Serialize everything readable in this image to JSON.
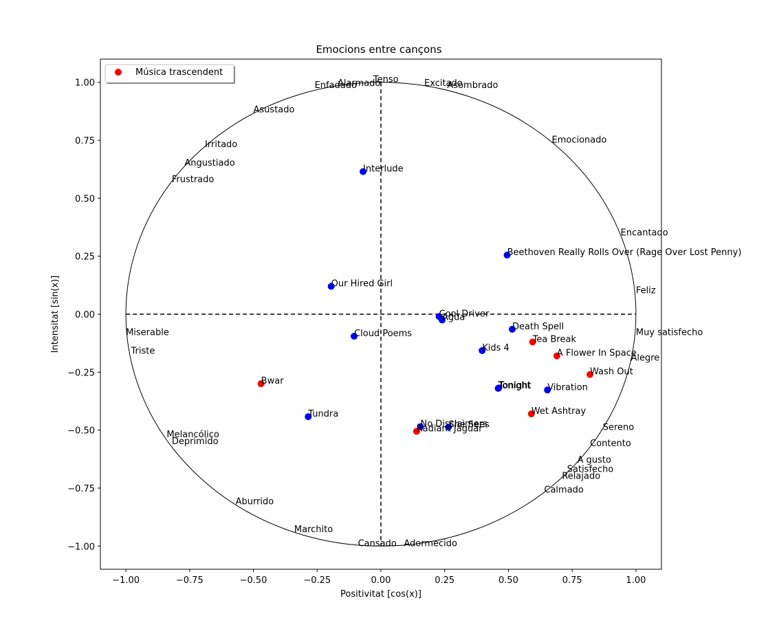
{
  "chart_data": {
    "type": "scatter",
    "title": "Emocions entre cançons",
    "xlabel": "Positivitat [cos(x)]",
    "ylabel": "Intensitat [sin(x)]",
    "xlim": [
      -1.1,
      1.1
    ],
    "ylim": [
      -1.1,
      1.1
    ],
    "xticks": [
      -1.0,
      -0.75,
      -0.5,
      -0.25,
      0.0,
      0.25,
      0.5,
      0.75,
      1.0
    ],
    "yticks": [
      1.0,
      0.75,
      0.5,
      0.25,
      0.0,
      -0.25,
      -0.5,
      -0.75,
      -1.0
    ],
    "xtick_labels": [
      "−1.00",
      "−0.75",
      "−0.50",
      "−0.25",
      "0.00",
      "0.25",
      "0.50",
      "0.75",
      "1.00"
    ],
    "ytick_labels": [
      "1.00",
      "0.75",
      "0.50",
      "0.25",
      "0.00",
      "−0.25",
      "−0.50",
      "−0.75",
      "−1.00"
    ],
    "grid": false,
    "unit_circle": true,
    "dashed_axes": true,
    "legend": {
      "location": "upper left",
      "entries": [
        {
          "label": "Música trascendent",
          "color": "#ff0000"
        }
      ]
    },
    "colors": {
      "blue": "#0000ff",
      "red": "#ff0000"
    },
    "series": [
      {
        "name": "Música trascendent",
        "color": "#ff0000",
        "points": [
          {
            "label": "Tea Break",
            "x": 0.595,
            "y": -0.12
          },
          {
            "label": "A Flower In Space",
            "x": 0.69,
            "y": -0.18
          },
          {
            "label": "Wash Out",
            "x": 0.82,
            "y": -0.26
          },
          {
            "label": "Bwar",
            "x": -0.47,
            "y": -0.3
          },
          {
            "label": "Wet Ashtray",
            "x": 0.59,
            "y": -0.43
          },
          {
            "label": "Radiant Jaguar",
            "x": 0.14,
            "y": -0.505
          }
        ]
      },
      {
        "color": "#0000ff",
        "points": [
          {
            "label": "Interlude",
            "x": -0.07,
            "y": 0.615
          },
          {
            "label": "Beethoven Really Rolls Over (Rage Over Lost Penny)",
            "x": 0.495,
            "y": 0.255
          },
          {
            "label": "Our Hired Girl",
            "x": -0.195,
            "y": 0.12
          },
          {
            "label": "Cool Driver",
            "x": 0.228,
            "y": -0.01
          },
          {
            "label": "Agua",
            "x": 0.24,
            "y": -0.025
          },
          {
            "label": "Death Spell",
            "x": 0.515,
            "y": -0.065
          },
          {
            "label": "Cloud Poems",
            "x": -0.105,
            "y": -0.095
          },
          {
            "label": "Kids 4",
            "x": 0.397,
            "y": -0.157
          },
          {
            "label": "Tonight",
            "x": 0.46,
            "y": -0.32
          },
          {
            "label": "Tonight",
            "x": 0.462,
            "y": -0.318
          },
          {
            "label": "Vibration",
            "x": 0.653,
            "y": -0.327
          },
          {
            "label": "Tundra",
            "x": -0.285,
            "y": -0.442
          },
          {
            "label": "No Disclaimers",
            "x": 0.155,
            "y": -0.485
          },
          {
            "label": "She Sees",
            "x": 0.265,
            "y": -0.487
          }
        ]
      }
    ],
    "emotion_labels": [
      {
        "label": "Tenso",
        "x": -0.03,
        "y": 1.0
      },
      {
        "label": "Alarmado",
        "x": -0.17,
        "y": 0.985
      },
      {
        "label": "Enfadado",
        "x": -0.26,
        "y": 0.975
      },
      {
        "label": "Excitado",
        "x": 0.17,
        "y": 0.985
      },
      {
        "label": "Asombrado",
        "x": 0.26,
        "y": 0.975
      },
      {
        "label": "Asustado",
        "x": -0.5,
        "y": 0.87
      },
      {
        "label": "Emocionado",
        "x": 0.67,
        "y": 0.74
      },
      {
        "label": "Irritado",
        "x": -0.69,
        "y": 0.72
      },
      {
        "label": "Angustiado",
        "x": -0.77,
        "y": 0.64
      },
      {
        "label": "Frustrado",
        "x": -0.82,
        "y": 0.57
      },
      {
        "label": "Encantado",
        "x": 0.94,
        "y": 0.34
      },
      {
        "label": "Feliz",
        "x": 1.0,
        "y": 0.09
      },
      {
        "label": "Miserable",
        "x": -1.0,
        "y": -0.09
      },
      {
        "label": "Muy satisfecho",
        "x": 1.0,
        "y": -0.09
      },
      {
        "label": "Triste",
        "x": -0.98,
        "y": -0.17
      },
      {
        "label": "Alegre",
        "x": 0.98,
        "y": -0.2
      },
      {
        "label": "Sereno",
        "x": 0.87,
        "y": -0.5
      },
      {
        "label": "Melancólico",
        "x": -0.84,
        "y": -0.53
      },
      {
        "label": "Deprimido",
        "x": -0.82,
        "y": -0.56
      },
      {
        "label": "Contento",
        "x": 0.82,
        "y": -0.57
      },
      {
        "label": "A gusto",
        "x": 0.77,
        "y": -0.64
      },
      {
        "label": "Satisfecho",
        "x": 0.73,
        "y": -0.68
      },
      {
        "label": "Relajado",
        "x": 0.71,
        "y": -0.71
      },
      {
        "label": "Calmado",
        "x": 0.64,
        "y": -0.77
      },
      {
        "label": "Aburrido",
        "x": -0.57,
        "y": -0.82
      },
      {
        "label": "Marchito",
        "x": -0.34,
        "y": -0.94
      },
      {
        "label": "Cansado",
        "x": -0.09,
        "y": -1.0
      },
      {
        "label": "Adormecido",
        "x": 0.09,
        "y": -1.0
      }
    ]
  }
}
